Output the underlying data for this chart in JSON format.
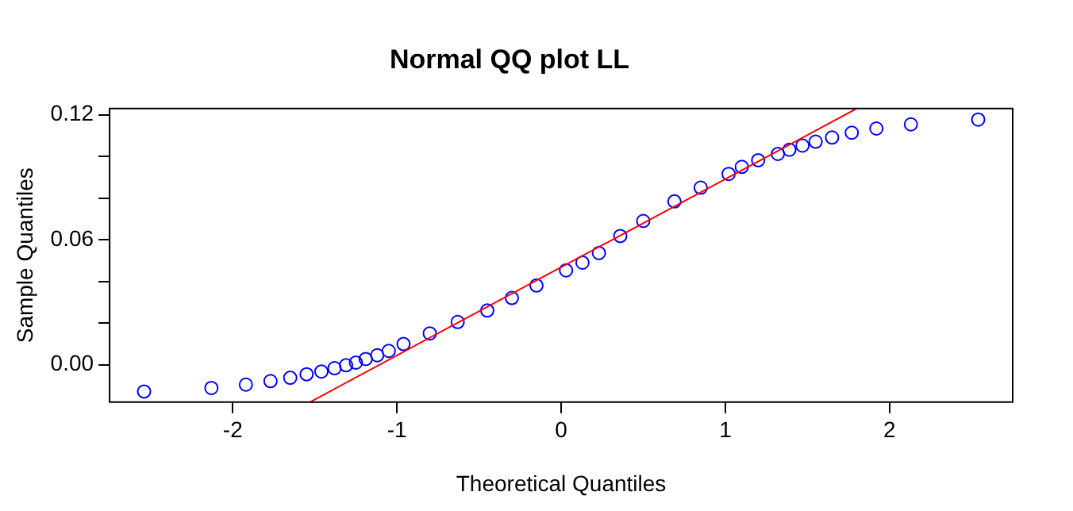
{
  "chart_data": {
    "type": "scatter",
    "title": "Normal QQ plot LL",
    "xlabel": "Theoretical Quantiles",
    "ylabel": "Sample Quantiles",
    "xlim": [
      -2.75,
      2.75
    ],
    "xticks": [
      -2,
      -1,
      0,
      1,
      2
    ],
    "ylim": [
      -0.018,
      0.123
    ],
    "yticks": [
      {
        "value": 0,
        "label": "0.00"
      },
      {
        "value": 0.02,
        "label": null
      },
      {
        "value": 0.04,
        "label": null
      },
      {
        "value": 0.06,
        "label": "0.06"
      },
      {
        "value": 0.08,
        "label": null
      },
      {
        "value": 0.1,
        "label": null
      },
      {
        "value": 0.12,
        "label": "0.12"
      }
    ],
    "grid": false,
    "legend": false,
    "marker": "circle",
    "series": [
      {
        "color": "#0000ff",
        "x": [
          -2.54,
          -2.13,
          -1.92,
          -1.77,
          -1.65,
          -1.55,
          -1.46,
          -1.38,
          -1.31,
          -1.25,
          -1.19,
          -1.12,
          -1.05,
          -0.96,
          -0.8,
          -0.63,
          -0.45,
          -0.3,
          -0.15,
          0.03,
          0.13,
          0.23,
          0.36,
          0.5,
          0.69,
          0.85,
          1.02,
          1.1,
          1.2,
          1.32,
          1.39,
          1.47,
          1.55,
          1.65,
          1.77,
          1.92,
          2.13,
          2.54
        ],
        "values": [
          -0.0129,
          -0.0112,
          -0.0096,
          -0.0079,
          -0.0063,
          -0.0046,
          -0.0033,
          -0.0017,
          -0.0003,
          0.001,
          0.0027,
          0.0045,
          0.0066,
          0.0099,
          0.015,
          0.0205,
          0.026,
          0.032,
          0.038,
          0.0453,
          0.049,
          0.0536,
          0.0618,
          0.069,
          0.0784,
          0.085,
          0.0916,
          0.095,
          0.0982,
          0.1012,
          0.1032,
          0.1052,
          0.1071,
          0.1091,
          0.1114,
          0.1134,
          0.1154,
          0.1177
        ]
      },
      {
        "type": "line",
        "color": "#ff0000",
        "x": [
          -1.53,
          1.8
        ],
        "values": [
          -0.018,
          0.123
        ],
        "marker": "none",
        "line_style": "solid"
      }
    ]
  }
}
